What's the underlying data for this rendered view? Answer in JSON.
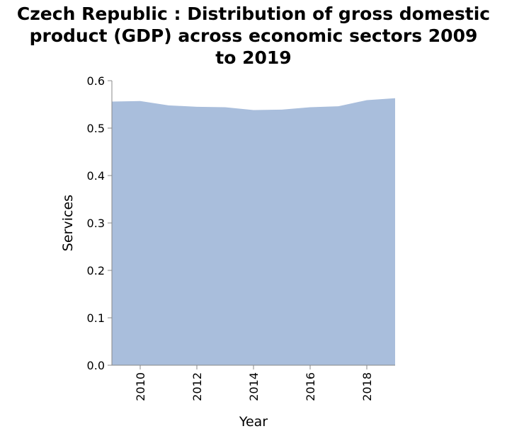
{
  "chart_data": {
    "type": "area",
    "title": "Czech Republic : Distribution of gross domestic product (GDP) across economic sectors 2009 to 2019",
    "xlabel": "Year",
    "ylabel": "Services",
    "x": [
      2009,
      2010,
      2011,
      2012,
      2013,
      2014,
      2015,
      2016,
      2017,
      2018,
      2019
    ],
    "series": [
      {
        "values": [
          0.556,
          0.557,
          0.548,
          0.545,
          0.544,
          0.538,
          0.539,
          0.544,
          0.546,
          0.559,
          0.563
        ]
      }
    ],
    "xlim": [
      2009,
      2019
    ],
    "ylim": [
      0,
      0.6
    ],
    "x_ticks": [
      "2010",
      "2012",
      "2014",
      "2016",
      "2018"
    ],
    "y_ticks": [
      "0.0",
      "0.1",
      "0.2",
      "0.3",
      "0.4",
      "0.5",
      "0.6"
    ],
    "grid": false,
    "area_color": "#a9bedc",
    "axis_color": "#888888"
  }
}
